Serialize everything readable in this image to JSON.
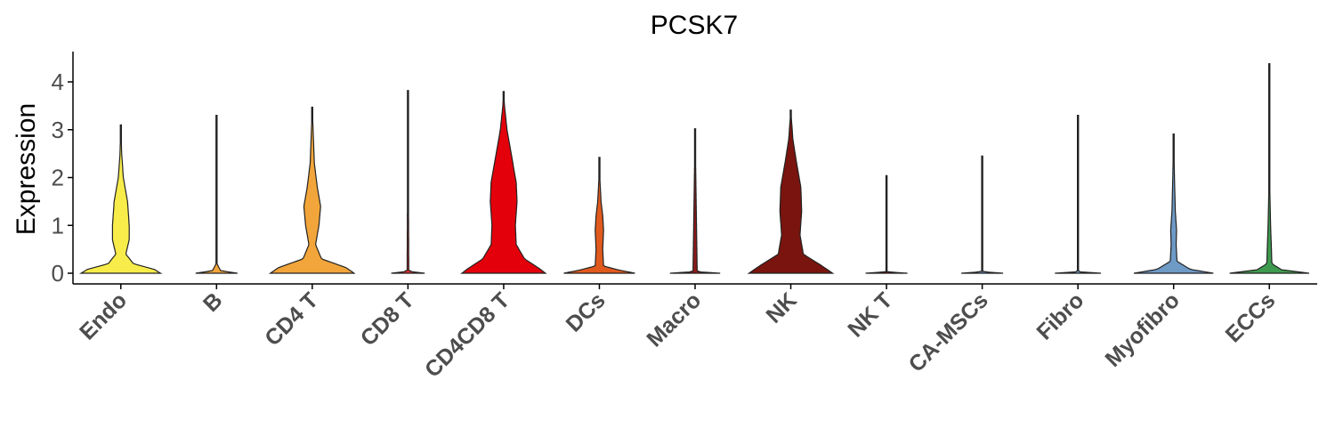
{
  "chart_data": {
    "type": "violin",
    "title": "PCSK7",
    "xlabel": "",
    "ylabel": "Expression",
    "ylim": [
      -0.2,
      4.6
    ],
    "yticks": [
      0,
      1,
      2,
      3,
      4
    ],
    "grid": false,
    "legend": "none",
    "categories": [
      "Endo",
      "B",
      "CD4 T",
      "CD8 T",
      "CD4CD8 T",
      "DCs",
      "Macro",
      "NK",
      "NK T",
      "CA-MSCs",
      "Fibro",
      "Myofibro",
      "ECCs"
    ],
    "colors": [
      "#F7EC4A",
      "#F2A53A",
      "#F2A53A",
      "#D62C2C",
      "#E3000B",
      "#E05A1E",
      "#8B1A1A",
      "#7A140E",
      "#7A140E",
      "#6E9AC6",
      "#6E9AC6",
      "#6E9AC6",
      "#3E9A4E"
    ],
    "series": [
      {
        "max": 3.1,
        "profile": [
          [
            0,
            0.95
          ],
          [
            0.08,
            0.8
          ],
          [
            0.2,
            0.3
          ],
          [
            0.4,
            0.12
          ],
          [
            0.7,
            0.2
          ],
          [
            1.0,
            0.2
          ],
          [
            1.5,
            0.16
          ],
          [
            2.0,
            0.06
          ],
          [
            2.5,
            0.02
          ],
          [
            3.1,
            0
          ]
        ]
      },
      {
        "max": 3.3,
        "profile": [
          [
            0,
            0.5
          ],
          [
            0.05,
            0.1
          ],
          [
            0.2,
            0.01
          ],
          [
            3.3,
            0
          ]
        ]
      },
      {
        "max": 3.47,
        "profile": [
          [
            0,
            1.0
          ],
          [
            0.12,
            0.8
          ],
          [
            0.3,
            0.22
          ],
          [
            0.6,
            0.08
          ],
          [
            1.0,
            0.16
          ],
          [
            1.4,
            0.2
          ],
          [
            1.8,
            0.12
          ],
          [
            2.3,
            0.05
          ],
          [
            3.0,
            0.02
          ],
          [
            3.47,
            0
          ]
        ]
      },
      {
        "max": 3.82,
        "profile": [
          [
            0,
            0.4
          ],
          [
            0.04,
            0.02
          ],
          [
            3.82,
            0
          ]
        ]
      },
      {
        "max": 3.8,
        "profile": [
          [
            0,
            1.0
          ],
          [
            0.1,
            0.85
          ],
          [
            0.3,
            0.5
          ],
          [
            0.6,
            0.3
          ],
          [
            1.0,
            0.28
          ],
          [
            1.5,
            0.32
          ],
          [
            1.9,
            0.3
          ],
          [
            2.4,
            0.2
          ],
          [
            3.0,
            0.08
          ],
          [
            3.5,
            0.02
          ],
          [
            3.8,
            0
          ]
        ]
      },
      {
        "max": 2.42,
        "profile": [
          [
            0,
            0.85
          ],
          [
            0.06,
            0.5
          ],
          [
            0.15,
            0.1
          ],
          [
            0.5,
            0.08
          ],
          [
            0.9,
            0.1
          ],
          [
            1.2,
            0.08
          ],
          [
            1.5,
            0.04
          ],
          [
            2.0,
            0.01
          ],
          [
            2.42,
            0
          ]
        ]
      },
      {
        "max": 3.02,
        "profile": [
          [
            0,
            0.6
          ],
          [
            0.03,
            0.05
          ],
          [
            3.02,
            0
          ]
        ]
      },
      {
        "max": 3.41,
        "profile": [
          [
            0,
            1.0
          ],
          [
            0.15,
            0.75
          ],
          [
            0.4,
            0.3
          ],
          [
            0.8,
            0.22
          ],
          [
            1.3,
            0.26
          ],
          [
            1.8,
            0.24
          ],
          [
            2.3,
            0.14
          ],
          [
            2.8,
            0.05
          ],
          [
            3.41,
            0
          ]
        ]
      },
      {
        "max": 2.04,
        "profile": [
          [
            0,
            0.5
          ],
          [
            0.03,
            0.01
          ],
          [
            2.04,
            0
          ]
        ]
      },
      {
        "max": 2.45,
        "profile": [
          [
            0,
            0.5
          ],
          [
            0.03,
            0.01
          ],
          [
            2.45,
            0
          ]
        ]
      },
      {
        "max": 3.3,
        "profile": [
          [
            0,
            0.55
          ],
          [
            0.03,
            0.01
          ],
          [
            3.3,
            0
          ]
        ]
      },
      {
        "max": 2.91,
        "profile": [
          [
            0,
            0.95
          ],
          [
            0.08,
            0.4
          ],
          [
            0.25,
            0.08
          ],
          [
            0.6,
            0.06
          ],
          [
            0.9,
            0.07
          ],
          [
            1.3,
            0.04
          ],
          [
            2.0,
            0.02
          ],
          [
            2.91,
            0
          ]
        ]
      },
      {
        "max": 4.38,
        "profile": [
          [
            0,
            0.95
          ],
          [
            0.07,
            0.3
          ],
          [
            0.2,
            0.06
          ],
          [
            0.5,
            0.05
          ],
          [
            1.0,
            0.03
          ],
          [
            1.8,
            0.01
          ],
          [
            4.38,
            0
          ]
        ]
      }
    ]
  }
}
